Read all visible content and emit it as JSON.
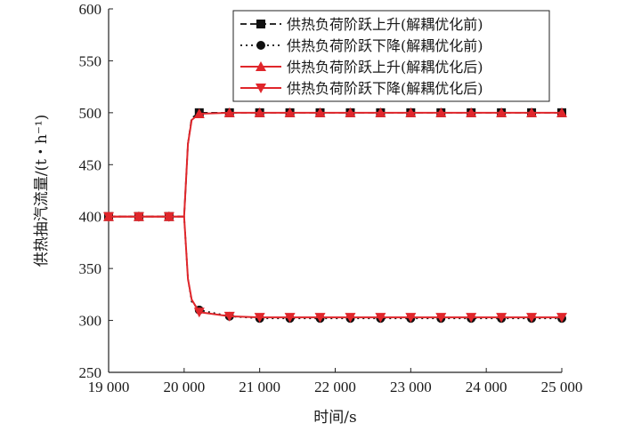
{
  "chart_data": {
    "type": "line",
    "xlabel": "时间/s",
    "ylabel": "供热抽汽流量/(t・h⁻¹)",
    "xlim": [
      19000,
      25000
    ],
    "ylim": [
      250,
      600
    ],
    "x_ticks": [
      19000,
      20000,
      21000,
      22000,
      23000,
      24000,
      25000
    ],
    "x_tick_labels": [
      "19 000",
      "20 000",
      "21 000",
      "22 000",
      "23 000",
      "24 000",
      "25 000"
    ],
    "y_ticks": [
      250,
      300,
      350,
      400,
      450,
      500,
      550,
      600
    ],
    "y_tick_labels": [
      "250",
      "300",
      "350",
      "400",
      "450",
      "500",
      "550",
      "600"
    ],
    "grid": false,
    "legend_position": "top-right",
    "series": [
      {
        "name": "供热负荷阶跃上升(解耦优化前)",
        "color": "#111111",
        "line_style": "dashed",
        "marker": "square",
        "x": [
          19000,
          19400,
          19800,
          20000,
          20050,
          20100,
          20200,
          20600,
          21000,
          21400,
          21800,
          22200,
          22600,
          23000,
          23400,
          23800,
          24200,
          24600,
          25000
        ],
        "y": [
          400,
          400,
          400,
          400,
          470,
          495,
          500,
          500,
          500,
          500,
          500,
          500,
          500,
          500,
          500,
          500,
          500,
          500,
          500
        ]
      },
      {
        "name": "供热负荷阶跃下降(解耦优化前)",
        "color": "#111111",
        "line_style": "dotted",
        "marker": "circle",
        "x": [
          19000,
          19400,
          19800,
          20000,
          20050,
          20100,
          20200,
          20600,
          21000,
          21400,
          21800,
          22200,
          22600,
          23000,
          23400,
          23800,
          24200,
          24600,
          25000
        ],
        "y": [
          400,
          400,
          400,
          400,
          340,
          318,
          310,
          304,
          302,
          302,
          302,
          302,
          302,
          302,
          302,
          302,
          302,
          302,
          302
        ]
      },
      {
        "name": "供热负荷阶跃上升(解耦优化后)",
        "color": "#e0262b",
        "line_style": "solid",
        "marker": "triangle-up",
        "x": [
          19000,
          19400,
          19800,
          20000,
          20050,
          20100,
          20200,
          20600,
          21000,
          21400,
          21800,
          22200,
          22600,
          23000,
          23400,
          23800,
          24200,
          24600,
          25000
        ],
        "y": [
          400,
          400,
          400,
          400,
          470,
          493,
          499,
          500,
          500,
          500,
          500,
          500,
          500,
          500,
          500,
          500,
          500,
          500,
          500
        ]
      },
      {
        "name": "供热负荷阶跃下降(解耦优化后)",
        "color": "#e0262b",
        "line_style": "solid",
        "marker": "triangle-down",
        "x": [
          19000,
          19400,
          19800,
          20000,
          20050,
          20100,
          20200,
          20600,
          21000,
          21400,
          21800,
          22200,
          22600,
          23000,
          23400,
          23800,
          24200,
          24600,
          25000
        ],
        "y": [
          400,
          400,
          400,
          400,
          340,
          320,
          308,
          304,
          303,
          303,
          303,
          303,
          303,
          303,
          303,
          303,
          303,
          303,
          303
        ]
      }
    ]
  }
}
